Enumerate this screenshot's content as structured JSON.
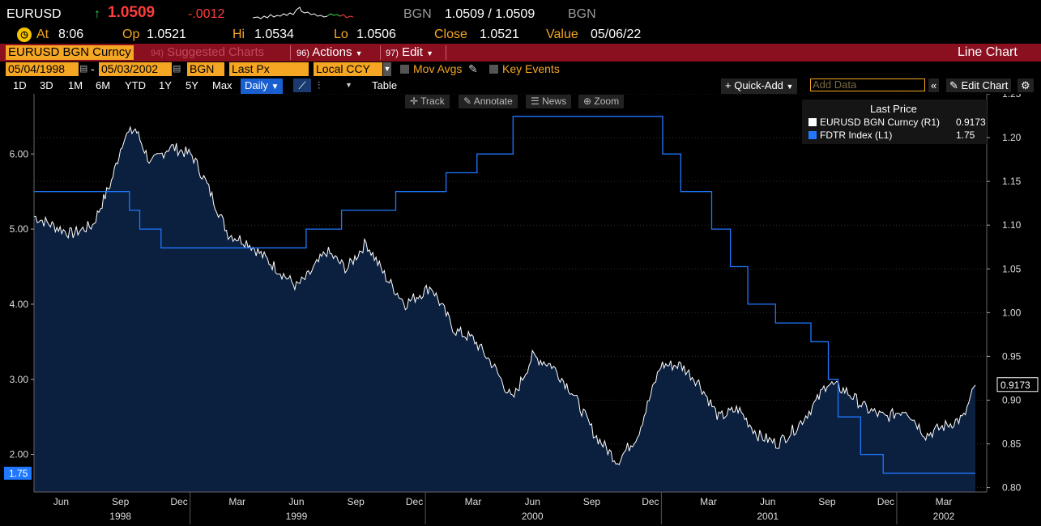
{
  "quote": {
    "ticker": "EURUSD",
    "arrow": "↑",
    "last": "1.0509",
    "change": "-.0012",
    "source": "BGN",
    "bid_ask": "1.0509 / 1.0509",
    "source2": "BGN",
    "colors": {
      "up": "#39d353",
      "down": "#ff3c3c"
    }
  },
  "stats": {
    "at_label": "At",
    "at_value": "8:06",
    "op_label": "Op",
    "op_value": "1.0521",
    "hi_label": "Hi",
    "hi_value": "1.0534",
    "lo_label": "Lo",
    "lo_value": "1.0506",
    "close_label": "Close",
    "close_value": "1.0521",
    "value_label": "Value",
    "value_value": "05/06/22"
  },
  "menubar": {
    "ticker_field": "EURUSD BGN Curncy",
    "suggested_num": "94)",
    "suggested_label": "Suggested Charts",
    "actions_num": "96)",
    "actions_label": "Actions",
    "edit_num": "97)",
    "edit_label": "Edit",
    "chart_type_label": "Line Chart"
  },
  "params": {
    "start_date": "05/04/1998",
    "end_date": "05/03/2002",
    "source": "BGN",
    "field": "Last Px",
    "currency": "Local CCY",
    "mov_avgs_label": "Mov Avgs",
    "key_events_label": "Key Events"
  },
  "toolbar": {
    "periods": [
      "1D",
      "3D",
      "1M",
      "6M",
      "YTD",
      "1Y",
      "5Y",
      "Max"
    ],
    "frequency": "Daily",
    "table_label": "Table",
    "quick_add_label": "Quick-Add",
    "add_data_placeholder": "Add Data",
    "edit_chart_label": "Edit Chart"
  },
  "chart_controls": {
    "track": "Track",
    "annotate": "Annotate",
    "news": "News",
    "zoom": "Zoom"
  },
  "legend": {
    "header": "Last Price",
    "items": [
      {
        "name": "EURUSD BGN Curncy  (R1)",
        "value": "0.9173",
        "color": "#ffffff"
      },
      {
        "name": "FDTR Index  (L1)",
        "value": "1.75",
        "color": "#1f78ff"
      }
    ]
  },
  "chart_data": {
    "type": "line",
    "x_range": [
      "1998-05-04",
      "2002-05-03"
    ],
    "left_axis": {
      "ticks": [
        "2.00",
        "3.00",
        "4.00",
        "5.00",
        "6.00"
      ],
      "range": [
        1.5,
        6.8
      ],
      "last_value_label": "1.75"
    },
    "right_axis": {
      "ticks": [
        "0.80",
        "0.85",
        "0.90",
        "0.95",
        "1.00",
        "1.05",
        "1.10",
        "1.15",
        "1.20",
        "1.25"
      ],
      "range": [
        0.795,
        1.25
      ],
      "last_value_label": "0.9173"
    },
    "x_month_labels": [
      {
        "date": "1998-06-15",
        "label": "Jun"
      },
      {
        "date": "1998-09-15",
        "label": "Sep"
      },
      {
        "date": "1998-12-15",
        "label": "Dec"
      },
      {
        "date": "1999-03-15",
        "label": "Mar"
      },
      {
        "date": "1999-06-15",
        "label": "Jun"
      },
      {
        "date": "1999-09-15",
        "label": "Sep"
      },
      {
        "date": "1999-12-15",
        "label": "Dec"
      },
      {
        "date": "2000-03-15",
        "label": "Mar"
      },
      {
        "date": "2000-06-15",
        "label": "Jun"
      },
      {
        "date": "2000-09-15",
        "label": "Sep"
      },
      {
        "date": "2000-12-15",
        "label": "Dec"
      },
      {
        "date": "2001-03-15",
        "label": "Mar"
      },
      {
        "date": "2001-06-15",
        "label": "Jun"
      },
      {
        "date": "2001-09-15",
        "label": "Sep"
      },
      {
        "date": "2001-12-15",
        "label": "Dec"
      },
      {
        "date": "2002-03-15",
        "label": "Mar"
      }
    ],
    "x_year_labels": [
      {
        "date": "1998-09-15",
        "label": "1998"
      },
      {
        "date": "1999-06-15",
        "label": "1999"
      },
      {
        "date": "2000-06-15",
        "label": "2000"
      },
      {
        "date": "2001-06-15",
        "label": "2001"
      },
      {
        "date": "2002-03-15",
        "label": "2002"
      }
    ],
    "year_boundaries": [
      "1999-01-01",
      "2000-01-01",
      "2001-01-01",
      "2002-01-01"
    ],
    "series": [
      {
        "name": "EURUSD BGN Curncy",
        "axis": "right",
        "style": "area",
        "color": "#ffffff",
        "fill": "#0b1f3e",
        "points": [
          [
            "1998-05-04",
            1.11
          ],
          [
            "1998-06-01",
            1.1
          ],
          [
            "1998-07-01",
            1.09
          ],
          [
            "1998-08-03",
            1.1
          ],
          [
            "1998-09-01",
            1.15
          ],
          [
            "1998-09-20",
            1.2
          ],
          [
            "1998-10-08",
            1.21
          ],
          [
            "1998-11-01",
            1.17
          ],
          [
            "1998-12-01",
            1.19
          ],
          [
            "1999-01-04",
            1.18
          ],
          [
            "1999-01-25",
            1.15
          ],
          [
            "1999-03-01",
            1.09
          ],
          [
            "1999-04-01",
            1.08
          ],
          [
            "1999-05-01",
            1.06
          ],
          [
            "1999-06-15",
            1.03
          ],
          [
            "1999-07-01",
            1.04
          ],
          [
            "1999-08-01",
            1.07
          ],
          [
            "1999-09-01",
            1.05
          ],
          [
            "1999-10-01",
            1.08
          ],
          [
            "1999-11-01",
            1.04
          ],
          [
            "1999-12-01",
            1.01
          ],
          [
            "2000-01-10",
            1.03
          ],
          [
            "2000-02-15",
            0.98
          ],
          [
            "2000-03-15",
            0.97
          ],
          [
            "2000-04-15",
            0.94
          ],
          [
            "2000-05-15",
            0.9
          ],
          [
            "2000-06-15",
            0.95
          ],
          [
            "2000-07-15",
            0.94
          ],
          [
            "2000-08-15",
            0.91
          ],
          [
            "2000-09-20",
            0.86
          ],
          [
            "2000-10-25",
            0.83
          ],
          [
            "2000-11-25",
            0.86
          ],
          [
            "2000-12-31",
            0.94
          ],
          [
            "2001-01-31",
            0.94
          ],
          [
            "2001-02-28",
            0.92
          ],
          [
            "2001-03-31",
            0.88
          ],
          [
            "2001-04-30",
            0.89
          ],
          [
            "2001-05-31",
            0.86
          ],
          [
            "2001-06-30",
            0.85
          ],
          [
            "2001-07-31",
            0.87
          ],
          [
            "2001-08-31",
            0.9
          ],
          [
            "2001-09-15",
            0.92
          ],
          [
            "2001-10-15",
            0.91
          ],
          [
            "2001-11-15",
            0.89
          ],
          [
            "2001-12-15",
            0.88
          ],
          [
            "2002-01-15",
            0.89
          ],
          [
            "2002-02-15",
            0.86
          ],
          [
            "2002-03-15",
            0.87
          ],
          [
            "2002-04-15",
            0.88
          ],
          [
            "2002-05-03",
            0.9173
          ]
        ]
      },
      {
        "name": "FDTR Index",
        "axis": "left",
        "style": "step",
        "color": "#1f78ff",
        "points": [
          [
            "1998-05-04",
            5.5
          ],
          [
            "1998-09-29",
            5.25
          ],
          [
            "1998-10-15",
            5.0
          ],
          [
            "1998-11-17",
            4.75
          ],
          [
            "1999-06-30",
            5.0
          ],
          [
            "1999-08-24",
            5.25
          ],
          [
            "1999-11-16",
            5.5
          ],
          [
            "2000-02-02",
            5.75
          ],
          [
            "2000-03-21",
            6.0
          ],
          [
            "2000-05-16",
            6.5
          ],
          [
            "2001-01-03",
            6.0
          ],
          [
            "2001-01-31",
            5.5
          ],
          [
            "2001-03-20",
            5.0
          ],
          [
            "2001-04-18",
            4.5
          ],
          [
            "2001-05-15",
            4.0
          ],
          [
            "2001-06-27",
            3.75
          ],
          [
            "2001-08-21",
            3.5
          ],
          [
            "2001-09-17",
            3.0
          ],
          [
            "2001-10-02",
            2.5
          ],
          [
            "2001-11-06",
            2.0
          ],
          [
            "2001-12-11",
            1.75
          ],
          [
            "2002-05-03",
            1.75
          ]
        ]
      }
    ]
  }
}
